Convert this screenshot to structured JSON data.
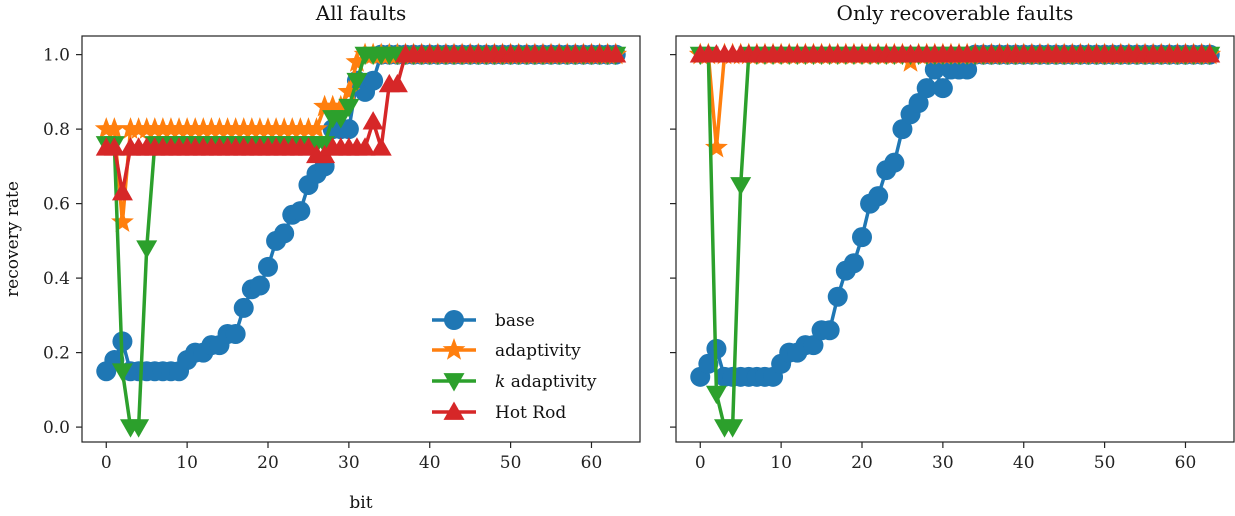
{
  "chart_data": [
    {
      "type": "line",
      "title": "All faults",
      "xlabel": "bit",
      "ylabel": "recovery rate",
      "xlim": [
        -3,
        66
      ],
      "ylim": [
        -0.04,
        1.05
      ],
      "xticks": [
        0,
        10,
        20,
        30,
        40,
        50,
        60
      ],
      "yticks": [
        0.0,
        0.2,
        0.4,
        0.6,
        0.8,
        1.0
      ],
      "ytick_labels": [
        "0.0",
        "0.2",
        "0.4",
        "0.6",
        "0.8",
        "1.0"
      ],
      "legend": "lower-right",
      "series": [
        {
          "name": "base",
          "color": "#1f77b4",
          "marker": "circle",
          "x": [
            0,
            1,
            2,
            3,
            4,
            5,
            6,
            7,
            8,
            9,
            10,
            11,
            12,
            13,
            14,
            15,
            16,
            17,
            18,
            19,
            20,
            21,
            22,
            23,
            24,
            25,
            26,
            27,
            28,
            29,
            30,
            31,
            32,
            33,
            34,
            35,
            36,
            37,
            38,
            39,
            40,
            41,
            42,
            43,
            44,
            45,
            46,
            47,
            48,
            49,
            50,
            51,
            52,
            53,
            54,
            55,
            56,
            57,
            58,
            59,
            60,
            61,
            62,
            63
          ],
          "y": [
            0.15,
            0.18,
            0.23,
            0.15,
            0.15,
            0.15,
            0.15,
            0.15,
            0.15,
            0.15,
            0.18,
            0.2,
            0.2,
            0.22,
            0.22,
            0.25,
            0.25,
            0.32,
            0.37,
            0.38,
            0.43,
            0.5,
            0.52,
            0.57,
            0.58,
            0.65,
            0.68,
            0.7,
            0.8,
            0.8,
            0.8,
            0.93,
            0.9,
            0.93,
            1.0,
            1.0,
            1.0,
            1.0,
            1.0,
            1.0,
            1.0,
            1.0,
            1.0,
            1.0,
            1.0,
            1.0,
            1.0,
            1.0,
            1.0,
            1.0,
            1.0,
            1.0,
            1.0,
            1.0,
            1.0,
            1.0,
            1.0,
            1.0,
            1.0,
            1.0,
            1.0,
            1.0,
            1.0,
            1.0
          ]
        },
        {
          "name": "adaptivity",
          "color": "#ff7f0e",
          "marker": "star",
          "x": [
            0,
            1,
            2,
            3,
            4,
            5,
            6,
            7,
            8,
            9,
            10,
            11,
            12,
            13,
            14,
            15,
            16,
            17,
            18,
            19,
            20,
            21,
            22,
            23,
            24,
            25,
            26,
            27,
            28,
            29,
            30,
            31,
            32,
            33,
            34,
            35,
            36,
            37,
            38,
            39,
            40,
            41,
            42,
            43,
            44,
            45,
            46,
            47,
            48,
            49,
            50,
            51,
            52,
            53,
            54,
            55,
            56,
            57,
            58,
            59,
            60,
            61,
            62,
            63
          ],
          "y": [
            0.8,
            0.8,
            0.55,
            0.8,
            0.8,
            0.8,
            0.8,
            0.8,
            0.8,
            0.8,
            0.8,
            0.8,
            0.8,
            0.8,
            0.8,
            0.8,
            0.8,
            0.8,
            0.8,
            0.8,
            0.8,
            0.8,
            0.8,
            0.8,
            0.8,
            0.8,
            0.8,
            0.86,
            0.86,
            0.86,
            0.9,
            0.98,
            1.0,
            1.0,
            1.0,
            1.0,
            1.0,
            1.0,
            1.0,
            1.0,
            1.0,
            1.0,
            1.0,
            1.0,
            1.0,
            1.0,
            1.0,
            1.0,
            1.0,
            1.0,
            1.0,
            1.0,
            1.0,
            1.0,
            1.0,
            1.0,
            1.0,
            1.0,
            1.0,
            1.0,
            1.0,
            1.0,
            1.0,
            1.0
          ]
        },
        {
          "name": "k adaptivity",
          "color": "#2ca02c",
          "marker": "triangle-down",
          "x": [
            0,
            1,
            2,
            3,
            4,
            5,
            6,
            7,
            8,
            9,
            10,
            11,
            12,
            13,
            14,
            15,
            16,
            17,
            18,
            19,
            20,
            21,
            22,
            23,
            24,
            25,
            26,
            27,
            28,
            29,
            30,
            31,
            32,
            33,
            34,
            35,
            36,
            37,
            38,
            39,
            40,
            41,
            42,
            43,
            44,
            45,
            46,
            47,
            48,
            49,
            50,
            51,
            52,
            53,
            54,
            55,
            56,
            57,
            58,
            59,
            60,
            61,
            62,
            63
          ],
          "y": [
            0.76,
            0.76,
            0.15,
            0.0,
            0.0,
            0.48,
            0.76,
            0.76,
            0.76,
            0.76,
            0.76,
            0.76,
            0.76,
            0.76,
            0.76,
            0.76,
            0.76,
            0.76,
            0.76,
            0.76,
            0.76,
            0.76,
            0.76,
            0.76,
            0.76,
            0.76,
            0.76,
            0.76,
            0.83,
            0.83,
            0.86,
            0.93,
            1.0,
            1.0,
            1.0,
            1.0,
            1.0,
            1.0,
            1.0,
            1.0,
            1.0,
            1.0,
            1.0,
            1.0,
            1.0,
            1.0,
            1.0,
            1.0,
            1.0,
            1.0,
            1.0,
            1.0,
            1.0,
            1.0,
            1.0,
            1.0,
            1.0,
            1.0,
            1.0,
            1.0,
            1.0,
            1.0,
            1.0,
            1.0
          ]
        },
        {
          "name": "Hot Rod",
          "color": "#d62728",
          "marker": "triangle-up",
          "x": [
            0,
            1,
            2,
            3,
            4,
            5,
            6,
            7,
            8,
            9,
            10,
            11,
            12,
            13,
            14,
            15,
            16,
            17,
            18,
            19,
            20,
            21,
            22,
            23,
            24,
            25,
            26,
            27,
            28,
            29,
            30,
            31,
            32,
            33,
            34,
            35,
            36,
            37,
            38,
            39,
            40,
            41,
            42,
            43,
            44,
            45,
            46,
            47,
            48,
            49,
            50,
            51,
            52,
            53,
            54,
            55,
            56,
            57,
            58,
            59,
            60,
            61,
            62,
            63
          ],
          "y": [
            0.75,
            0.75,
            0.63,
            0.75,
            0.75,
            0.75,
            0.75,
            0.75,
            0.75,
            0.75,
            0.75,
            0.75,
            0.75,
            0.75,
            0.75,
            0.75,
            0.75,
            0.75,
            0.75,
            0.75,
            0.75,
            0.75,
            0.75,
            0.75,
            0.75,
            0.75,
            0.73,
            0.73,
            0.75,
            0.75,
            0.75,
            0.75,
            0.75,
            0.82,
            0.75,
            0.92,
            0.92,
            1.0,
            1.0,
            1.0,
            1.0,
            1.0,
            1.0,
            1.0,
            1.0,
            1.0,
            1.0,
            1.0,
            1.0,
            1.0,
            1.0,
            1.0,
            1.0,
            1.0,
            1.0,
            1.0,
            1.0,
            1.0,
            1.0,
            1.0,
            1.0,
            1.0,
            1.0,
            1.0
          ]
        }
      ]
    },
    {
      "type": "line",
      "title": "Only recoverable faults",
      "xlabel": "",
      "ylabel": "",
      "xlim": [
        -3,
        66
      ],
      "ylim": [
        -0.04,
        1.05
      ],
      "xticks": [
        0,
        10,
        20,
        30,
        40,
        50,
        60
      ],
      "yticks": [
        0.0,
        0.2,
        0.4,
        0.6,
        0.8,
        1.0
      ],
      "ytick_labels": [],
      "series": [
        {
          "name": "base",
          "color": "#1f77b4",
          "marker": "circle",
          "x": [
            0,
            1,
            2,
            3,
            4,
            5,
            6,
            7,
            8,
            9,
            10,
            11,
            12,
            13,
            14,
            15,
            16,
            17,
            18,
            19,
            20,
            21,
            22,
            23,
            24,
            25,
            26,
            27,
            28,
            29,
            30,
            31,
            32,
            33,
            34,
            35,
            36,
            37,
            38,
            39,
            40,
            41,
            42,
            43,
            44,
            45,
            46,
            47,
            48,
            49,
            50,
            51,
            52,
            53,
            54,
            55,
            56,
            57,
            58,
            59,
            60,
            61,
            62,
            63
          ],
          "y": [
            0.135,
            0.17,
            0.21,
            0.135,
            0.135,
            0.135,
            0.135,
            0.135,
            0.135,
            0.135,
            0.17,
            0.2,
            0.2,
            0.22,
            0.22,
            0.26,
            0.26,
            0.35,
            0.42,
            0.44,
            0.51,
            0.6,
            0.62,
            0.69,
            0.71,
            0.8,
            0.84,
            0.87,
            0.91,
            0.96,
            0.91,
            0.96,
            0.96,
            0.96,
            1.0,
            1.0,
            1.0,
            1.0,
            1.0,
            1.0,
            1.0,
            1.0,
            1.0,
            1.0,
            1.0,
            1.0,
            1.0,
            1.0,
            1.0,
            1.0,
            1.0,
            1.0,
            1.0,
            1.0,
            1.0,
            1.0,
            1.0,
            1.0,
            1.0,
            1.0,
            1.0,
            1.0,
            1.0,
            1.0
          ]
        },
        {
          "name": "adaptivity",
          "color": "#ff7f0e",
          "marker": "star",
          "x": [
            0,
            1,
            2,
            3,
            4,
            5,
            6,
            7,
            8,
            9,
            10,
            11,
            12,
            13,
            14,
            15,
            16,
            17,
            18,
            19,
            20,
            21,
            22,
            23,
            24,
            25,
            26,
            27,
            28,
            29,
            30,
            31,
            32,
            33,
            34,
            35,
            36,
            37,
            38,
            39,
            40,
            41,
            42,
            43,
            44,
            45,
            46,
            47,
            48,
            49,
            50,
            51,
            52,
            53,
            54,
            55,
            56,
            57,
            58,
            59,
            60,
            61,
            62,
            63
          ],
          "y": [
            1.0,
            1.0,
            0.75,
            1.0,
            1.0,
            1.0,
            1.0,
            1.0,
            1.0,
            1.0,
            1.0,
            1.0,
            1.0,
            1.0,
            1.0,
            1.0,
            1.0,
            1.0,
            1.0,
            1.0,
            1.0,
            1.0,
            1.0,
            1.0,
            1.0,
            1.0,
            0.98,
            1.0,
            1.0,
            1.0,
            1.0,
            1.0,
            1.0,
            1.0,
            1.0,
            1.0,
            1.0,
            1.0,
            1.0,
            1.0,
            1.0,
            1.0,
            1.0,
            1.0,
            1.0,
            1.0,
            1.0,
            1.0,
            1.0,
            1.0,
            1.0,
            1.0,
            1.0,
            1.0,
            1.0,
            1.0,
            1.0,
            1.0,
            1.0,
            1.0,
            1.0,
            1.0,
            1.0,
            1.0
          ]
        },
        {
          "name": "k adaptivity",
          "color": "#2ca02c",
          "marker": "triangle-down",
          "x": [
            0,
            1,
            2,
            3,
            4,
            5,
            6,
            7,
            8,
            9,
            10,
            11,
            12,
            13,
            14,
            15,
            16,
            17,
            18,
            19,
            20,
            21,
            22,
            23,
            24,
            25,
            26,
            27,
            28,
            29,
            30,
            31,
            32,
            33,
            34,
            35,
            36,
            37,
            38,
            39,
            40,
            41,
            42,
            43,
            44,
            45,
            46,
            47,
            48,
            49,
            50,
            51,
            52,
            53,
            54,
            55,
            56,
            57,
            58,
            59,
            60,
            61,
            62,
            63
          ],
          "y": [
            1.0,
            1.0,
            0.09,
            0.0,
            0.0,
            0.65,
            1.0,
            1.0,
            1.0,
            1.0,
            1.0,
            1.0,
            1.0,
            1.0,
            1.0,
            1.0,
            1.0,
            1.0,
            1.0,
            1.0,
            1.0,
            1.0,
            1.0,
            1.0,
            1.0,
            1.0,
            1.0,
            1.0,
            1.0,
            1.0,
            1.0,
            1.0,
            1.0,
            1.0,
            1.0,
            1.0,
            1.0,
            1.0,
            1.0,
            1.0,
            1.0,
            1.0,
            1.0,
            1.0,
            1.0,
            1.0,
            1.0,
            1.0,
            1.0,
            1.0,
            1.0,
            1.0,
            1.0,
            1.0,
            1.0,
            1.0,
            1.0,
            1.0,
            1.0,
            1.0,
            1.0,
            1.0,
            1.0,
            1.0
          ]
        },
        {
          "name": "Hot Rod",
          "color": "#d62728",
          "marker": "triangle-up",
          "x": [
            0,
            1,
            2,
            3,
            4,
            5,
            6,
            7,
            8,
            9,
            10,
            11,
            12,
            13,
            14,
            15,
            16,
            17,
            18,
            19,
            20,
            21,
            22,
            23,
            24,
            25,
            26,
            27,
            28,
            29,
            30,
            31,
            32,
            33,
            34,
            35,
            36,
            37,
            38,
            39,
            40,
            41,
            42,
            43,
            44,
            45,
            46,
            47,
            48,
            49,
            50,
            51,
            52,
            53,
            54,
            55,
            56,
            57,
            58,
            59,
            60,
            61,
            62,
            63
          ],
          "y": [
            1.0,
            1.0,
            1.0,
            1.0,
            1.0,
            1.0,
            1.0,
            1.0,
            1.0,
            1.0,
            1.0,
            1.0,
            1.0,
            1.0,
            1.0,
            1.0,
            1.0,
            1.0,
            1.0,
            1.0,
            1.0,
            1.0,
            1.0,
            1.0,
            1.0,
            1.0,
            1.0,
            1.0,
            1.0,
            1.0,
            1.0,
            1.0,
            1.0,
            1.0,
            1.0,
            1.0,
            1.0,
            1.0,
            1.0,
            1.0,
            1.0,
            1.0,
            1.0,
            1.0,
            1.0,
            1.0,
            1.0,
            1.0,
            1.0,
            1.0,
            1.0,
            1.0,
            1.0,
            1.0,
            1.0,
            1.0,
            1.0,
            1.0,
            1.0,
            1.0,
            1.0,
            1.0,
            1.0,
            1.0
          ]
        }
      ]
    }
  ],
  "legend_entries": [
    {
      "label": "base",
      "color": "#1f77b4",
      "marker": "circle"
    },
    {
      "label": "adaptivity",
      "color": "#ff7f0e",
      "marker": "star"
    },
    {
      "label_italic": "k",
      "label_rest": " adaptivity",
      "color": "#2ca02c",
      "marker": "triangle-down"
    },
    {
      "label": "Hot Rod",
      "color": "#d62728",
      "marker": "triangle-up"
    }
  ]
}
